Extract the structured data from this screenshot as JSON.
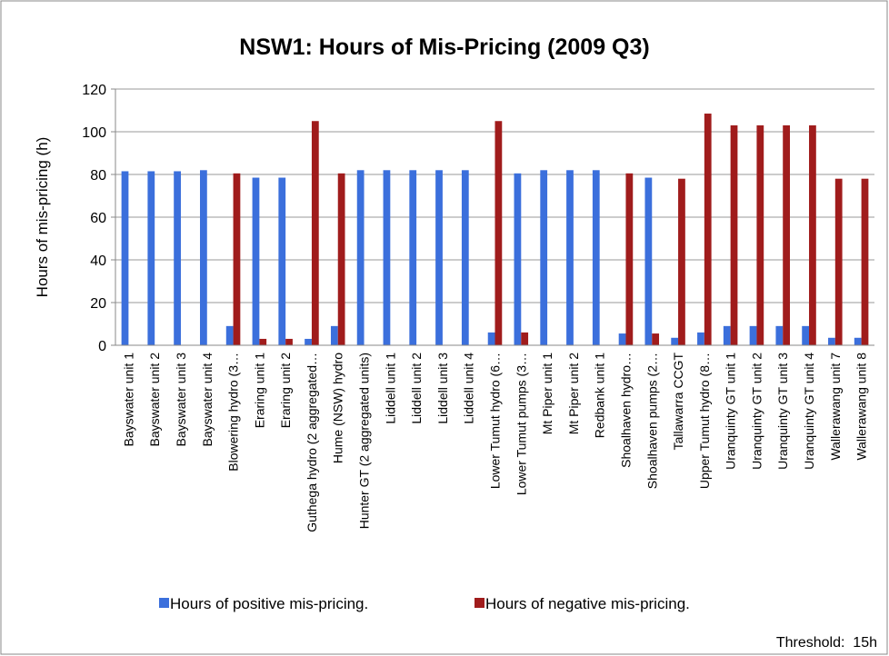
{
  "chart_data": {
    "type": "bar",
    "title": "NSW1: Hours of Mis-Pricing (2009 Q3)",
    "y_label": "Hours of mis-pricing (h)",
    "annotation": "Threshold:  15h",
    "categories": [
      "Bayswater unit 1",
      "Bayswater unit 2",
      "Bayswater unit 3",
      "Bayswater unit 4",
      "Blowering hydro (3…",
      "Eraring unit 1",
      "Eraring unit 2",
      "Guthega hydro (2 aggregated…",
      "Hume (NSW) hydro",
      "Hunter GT (2 aggregated units)",
      "Liddell unit 1",
      "Liddell unit 2",
      "Liddell unit 3",
      "Liddell unit 4",
      "Lower Tumut hydro (6…",
      "Lower Tumut pumps (3…",
      "Mt Piper unit 1",
      "Mt Piper unit 2",
      "Redbank unit 1",
      "Shoalhaven hydro…",
      "Shoalhaven pumps (2…",
      "Tallawarra CCGT",
      "Upper Tumut hydro (8…",
      "Uranquinty GT unit 1",
      "Uranquinty GT unit 2",
      "Uranquinty GT unit 3",
      "Uranquinty GT unit 4",
      "Wallerawang unit 7",
      "Wallerawang unit 8"
    ],
    "series": [
      {
        "name": "Hours of positive mis-pricing.",
        "color": "#3b6fdc",
        "values": [
          81.5,
          81.5,
          81.5,
          82,
          9,
          78.5,
          78.5,
          3,
          9,
          82,
          82,
          82,
          82,
          82,
          6,
          80.5,
          82,
          82,
          82,
          5.5,
          78.5,
          3.5,
          6,
          9,
          9,
          9,
          9,
          3.5,
          3.5
        ]
      },
      {
        "name": "Hours of negative mis-pricing.",
        "color": "#a01c1c",
        "values": [
          0,
          0,
          0,
          0,
          80.5,
          3,
          3,
          105,
          80.5,
          0,
          0,
          0,
          0,
          0,
          105,
          6,
          0,
          0,
          0,
          80.5,
          5.5,
          78,
          108.5,
          103,
          103,
          103,
          103,
          78,
          78
        ]
      }
    ],
    "ylim": [
      0,
      120
    ],
    "yticks": [
      0,
      20,
      40,
      60,
      80,
      100,
      120
    ],
    "grid": true,
    "legend": "bottom"
  }
}
